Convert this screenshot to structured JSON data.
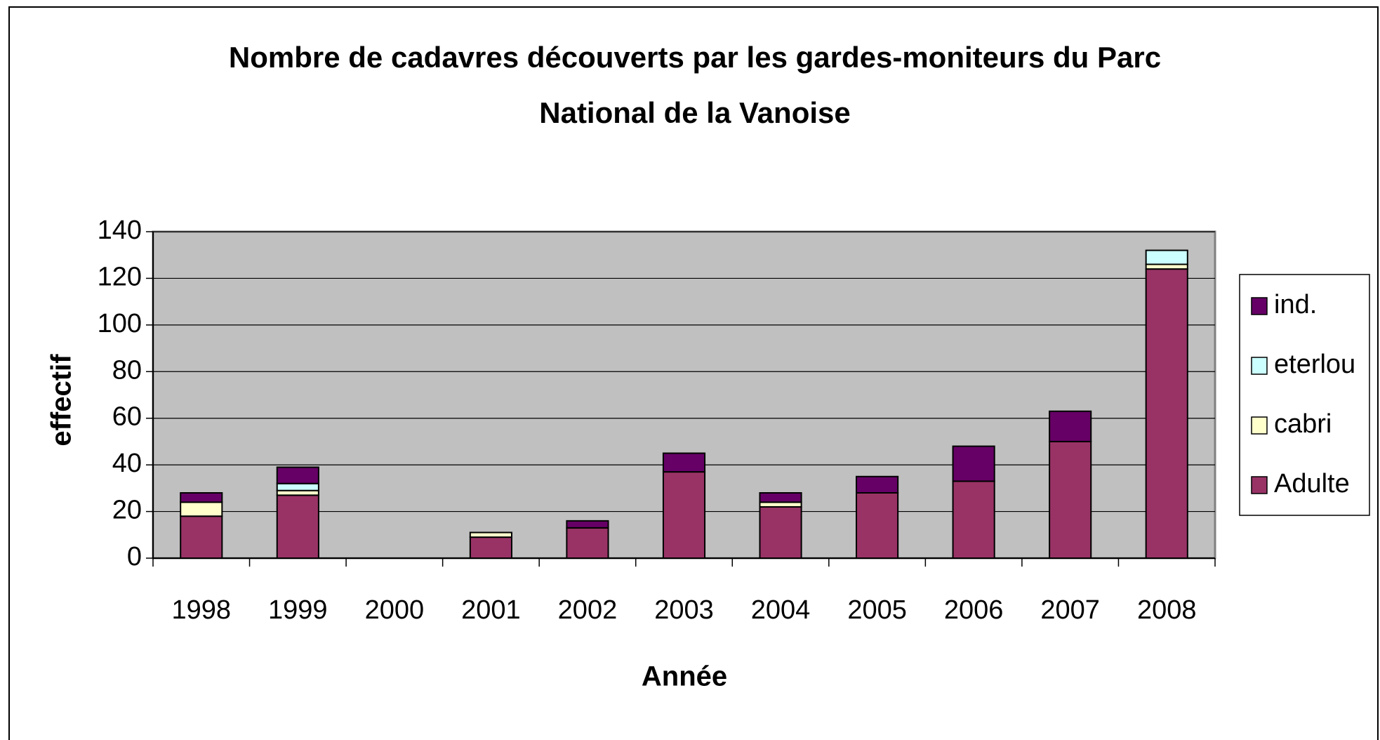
{
  "chart_data": {
    "type": "stacked_bar",
    "title": "Nombre de cadavres découverts par les gardes-moniteurs du Parc National de la Vanoise",
    "title_lines": [
      "Nombre de cadavres découverts par les gardes-moniteurs du Parc",
      "National de la Vanoise"
    ],
    "x_label": "Année",
    "y_label": "effectif",
    "categories": [
      "1998",
      "1999",
      "2000",
      "2001",
      "2002",
      "2003",
      "2004",
      "2005",
      "2006",
      "2007",
      "2008"
    ],
    "series": [
      {
        "name": "Adulte",
        "color": "#993366",
        "values": [
          18,
          27,
          0,
          9,
          13,
          37,
          22,
          28,
          33,
          50,
          124
        ]
      },
      {
        "name": "cabri",
        "color": "#ffffcc",
        "values": [
          6,
          2,
          0,
          2,
          0,
          0,
          2,
          0,
          0,
          0,
          2
        ]
      },
      {
        "name": "eterlou",
        "color": "#ccffff",
        "values": [
          0,
          3,
          0,
          0,
          0,
          0,
          0,
          0,
          0,
          0,
          6
        ]
      },
      {
        "name": "ind.",
        "color": "#660066",
        "values": [
          4,
          7,
          0,
          0,
          3,
          8,
          4,
          7,
          15,
          13,
          0
        ]
      }
    ],
    "ylim": [
      0,
      140
    ],
    "yticks": [
      0,
      20,
      40,
      60,
      80,
      100,
      120,
      140
    ],
    "grid": true,
    "plot_background": "#c0c0c0",
    "legend_position": "right"
  }
}
